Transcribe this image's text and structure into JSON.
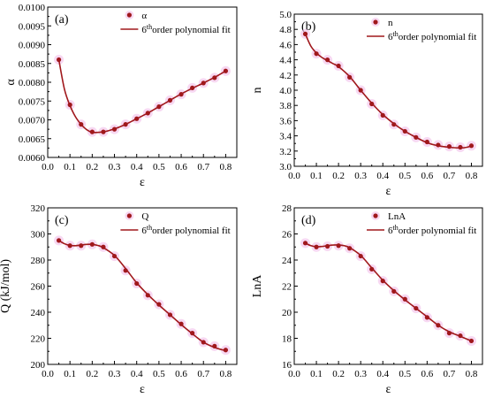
{
  "figure": {
    "style": {
      "fit_color": "#a0181c",
      "marker_color": "#a0181c",
      "halo_color": "#f0b8e8",
      "axis_color": "#000000"
    }
  },
  "chart_data": [
    {
      "type": "scatter",
      "panel_label": "(a)",
      "xlabel": "ε",
      "ylabel": "α",
      "xlim": [
        0.0,
        0.85
      ],
      "ylim": [
        0.006,
        0.01
      ],
      "xticks": [
        0.0,
        0.1,
        0.2,
        0.3,
        0.4,
        0.5,
        0.6,
        0.7,
        0.8
      ],
      "xtick_labels": [
        "0.0",
        "0.1",
        "0.2",
        "0.3",
        "0.4",
        "0.5",
        "0.6",
        "0.7",
        "0.8"
      ],
      "yticks": [
        0.006,
        0.0065,
        0.007,
        0.0075,
        0.008,
        0.0085,
        0.009,
        0.0095,
        0.01
      ],
      "ytick_labels": [
        "0.0060",
        "0.0065",
        "0.0070",
        "0.0075",
        "0.0080",
        "0.0085",
        "0.0090",
        "0.0095",
        "0.0100"
      ],
      "legend": {
        "position": "top-right",
        "marker_label": "α",
        "fit_label_pre": "6",
        "fit_label_sup": "th",
        "fit_label_post": "order polynomial fit"
      },
      "series": [
        {
          "name": "α",
          "kind": "points",
          "x": [
            0.05,
            0.1,
            0.15,
            0.2,
            0.25,
            0.3,
            0.35,
            0.4,
            0.45,
            0.5,
            0.55,
            0.6,
            0.65,
            0.7,
            0.75,
            0.8
          ],
          "y": [
            0.0086,
            0.0074,
            0.00688,
            0.00668,
            0.00668,
            0.00675,
            0.00688,
            0.00703,
            0.00718,
            0.00735,
            0.00752,
            0.00768,
            0.00785,
            0.00798,
            0.00812,
            0.0083
          ]
        },
        {
          "name": "6thorder polynomial fit",
          "kind": "line",
          "x": [
            0.05,
            0.075,
            0.1,
            0.125,
            0.15,
            0.175,
            0.2,
            0.25,
            0.3,
            0.35,
            0.4,
            0.45,
            0.5,
            0.55,
            0.6,
            0.65,
            0.7,
            0.75,
            0.8
          ],
          "y": [
            0.0086,
            0.00782,
            0.00738,
            0.00708,
            0.00688,
            0.00674,
            0.00667,
            0.00668,
            0.00676,
            0.00688,
            0.00703,
            0.00718,
            0.00735,
            0.00752,
            0.00769,
            0.00784,
            0.00798,
            0.00813,
            0.0083
          ]
        }
      ]
    },
    {
      "type": "scatter",
      "panel_label": "(b)",
      "xlabel": "ε",
      "ylabel": "n",
      "xlim": [
        0.0,
        0.85
      ],
      "ylim": [
        3.0,
        5.0
      ],
      "xticks": [
        0.0,
        0.1,
        0.2,
        0.3,
        0.4,
        0.5,
        0.6,
        0.7,
        0.8
      ],
      "xtick_labels": [
        "0.0",
        "0.1",
        "0.2",
        "0.3",
        "0.4",
        "0.5",
        "0.6",
        "0.7",
        "0.8"
      ],
      "yticks": [
        3.0,
        3.2,
        3.4,
        3.6,
        3.8,
        4.0,
        4.2,
        4.4,
        4.6,
        4.8,
        5.0
      ],
      "ytick_labels": [
        "3.0",
        "3.2",
        "3.4",
        "3.6",
        "3.8",
        "4.0",
        "4.2",
        "4.4",
        "4.6",
        "4.8",
        "5.0"
      ],
      "legend": {
        "position": "top-right",
        "marker_label": "n",
        "fit_label_pre": "6",
        "fit_label_sup": "th",
        "fit_label_post": "order polynomial fit"
      },
      "series": [
        {
          "name": "n",
          "kind": "points",
          "x": [
            0.05,
            0.1,
            0.15,
            0.2,
            0.25,
            0.3,
            0.35,
            0.4,
            0.45,
            0.5,
            0.55,
            0.6,
            0.65,
            0.7,
            0.75,
            0.8
          ],
          "y": [
            4.74,
            4.48,
            4.4,
            4.32,
            4.17,
            4.0,
            3.82,
            3.67,
            3.55,
            3.46,
            3.38,
            3.32,
            3.28,
            3.26,
            3.25,
            3.27
          ]
        },
        {
          "name": "6thorder polynomial fit",
          "kind": "line",
          "x": [
            0.05,
            0.075,
            0.1,
            0.125,
            0.15,
            0.175,
            0.2,
            0.25,
            0.3,
            0.35,
            0.4,
            0.45,
            0.5,
            0.55,
            0.6,
            0.65,
            0.7,
            0.75,
            0.78,
            0.8
          ],
          "y": [
            4.74,
            4.58,
            4.49,
            4.43,
            4.39,
            4.35,
            4.31,
            4.18,
            4.0,
            3.83,
            3.68,
            3.56,
            3.46,
            3.38,
            3.31,
            3.27,
            3.25,
            3.24,
            3.25,
            3.27
          ]
        }
      ]
    },
    {
      "type": "scatter",
      "panel_label": "(c)",
      "xlabel": "ε",
      "ylabel": "Q (kJ/mol)",
      "xlim": [
        0.0,
        0.85
      ],
      "ylim": [
        200,
        320
      ],
      "xticks": [
        0.0,
        0.1,
        0.2,
        0.3,
        0.4,
        0.5,
        0.6,
        0.7,
        0.8
      ],
      "xtick_labels": [
        "0.0",
        "0.1",
        "0.2",
        "0.3",
        "0.4",
        "0.5",
        "0.6",
        "0.7",
        "0.8"
      ],
      "yticks": [
        200,
        220,
        240,
        260,
        280,
        300,
        320
      ],
      "ytick_labels": [
        "200",
        "220",
        "240",
        "260",
        "280",
        "300",
        "320"
      ],
      "legend": {
        "position": "top-right",
        "marker_label": "Q",
        "fit_label_pre": "6",
        "fit_label_sup": "th",
        "fit_label_post": "order polynomial fit"
      },
      "series": [
        {
          "name": "Q",
          "kind": "points",
          "x": [
            0.05,
            0.1,
            0.15,
            0.2,
            0.25,
            0.3,
            0.35,
            0.4,
            0.45,
            0.5,
            0.55,
            0.6,
            0.65,
            0.7,
            0.75,
            0.8
          ],
          "y": [
            295,
            291,
            291,
            292,
            290,
            283,
            272,
            262,
            253,
            246,
            238,
            231,
            224,
            217,
            214,
            211
          ]
        },
        {
          "name": "6thorder polynomial fit",
          "kind": "line",
          "x": [
            0.05,
            0.075,
            0.1,
            0.125,
            0.15,
            0.175,
            0.2,
            0.225,
            0.25,
            0.3,
            0.35,
            0.4,
            0.45,
            0.5,
            0.55,
            0.6,
            0.65,
            0.7,
            0.75,
            0.8
          ],
          "y": [
            295,
            292.5,
            291.2,
            291.0,
            291.5,
            292.0,
            292.0,
            291.2,
            289.5,
            283.5,
            273.5,
            262.5,
            253.5,
            245.5,
            238.0,
            230.5,
            223.5,
            217.0,
            213.0,
            210.5
          ]
        }
      ]
    },
    {
      "type": "scatter",
      "panel_label": "(d)",
      "xlabel": "ε",
      "ylabel": "LnA",
      "xlim": [
        0.0,
        0.85
      ],
      "ylim": [
        16,
        28
      ],
      "xticks": [
        0.0,
        0.1,
        0.2,
        0.3,
        0.4,
        0.5,
        0.6,
        0.7,
        0.8
      ],
      "xtick_labels": [
        "0.0",
        "0.1",
        "0.2",
        "0.3",
        "0.4",
        "0.5",
        "0.6",
        "0.7",
        "0.8"
      ],
      "yticks": [
        16,
        18,
        20,
        22,
        24,
        26,
        28
      ],
      "ytick_labels": [
        "16",
        "18",
        "20",
        "22",
        "24",
        "26",
        "28"
      ],
      "legend": {
        "position": "top-right",
        "marker_label": "LnA",
        "fit_label_pre": "6",
        "fit_label_sup": "th",
        "fit_label_post": "order polynomial fit"
      },
      "series": [
        {
          "name": "LnA",
          "kind": "points",
          "x": [
            0.05,
            0.1,
            0.15,
            0.2,
            0.25,
            0.3,
            0.35,
            0.4,
            0.45,
            0.5,
            0.55,
            0.6,
            0.65,
            0.7,
            0.75,
            0.8
          ],
          "y": [
            25.3,
            25.0,
            25.05,
            25.1,
            24.9,
            24.3,
            23.3,
            22.4,
            21.6,
            21.0,
            20.3,
            19.6,
            19.0,
            18.4,
            18.2,
            17.8
          ]
        },
        {
          "name": "6thorder polynomial fit",
          "kind": "line",
          "x": [
            0.05,
            0.075,
            0.1,
            0.125,
            0.15,
            0.175,
            0.2,
            0.225,
            0.25,
            0.3,
            0.35,
            0.4,
            0.45,
            0.5,
            0.55,
            0.6,
            0.65,
            0.7,
            0.75,
            0.8
          ],
          "y": [
            25.3,
            25.1,
            25.02,
            25.04,
            25.1,
            25.15,
            25.15,
            25.1,
            24.95,
            24.35,
            23.4,
            22.45,
            21.65,
            20.95,
            20.3,
            19.65,
            19.0,
            18.5,
            18.15,
            17.8
          ]
        }
      ]
    }
  ]
}
